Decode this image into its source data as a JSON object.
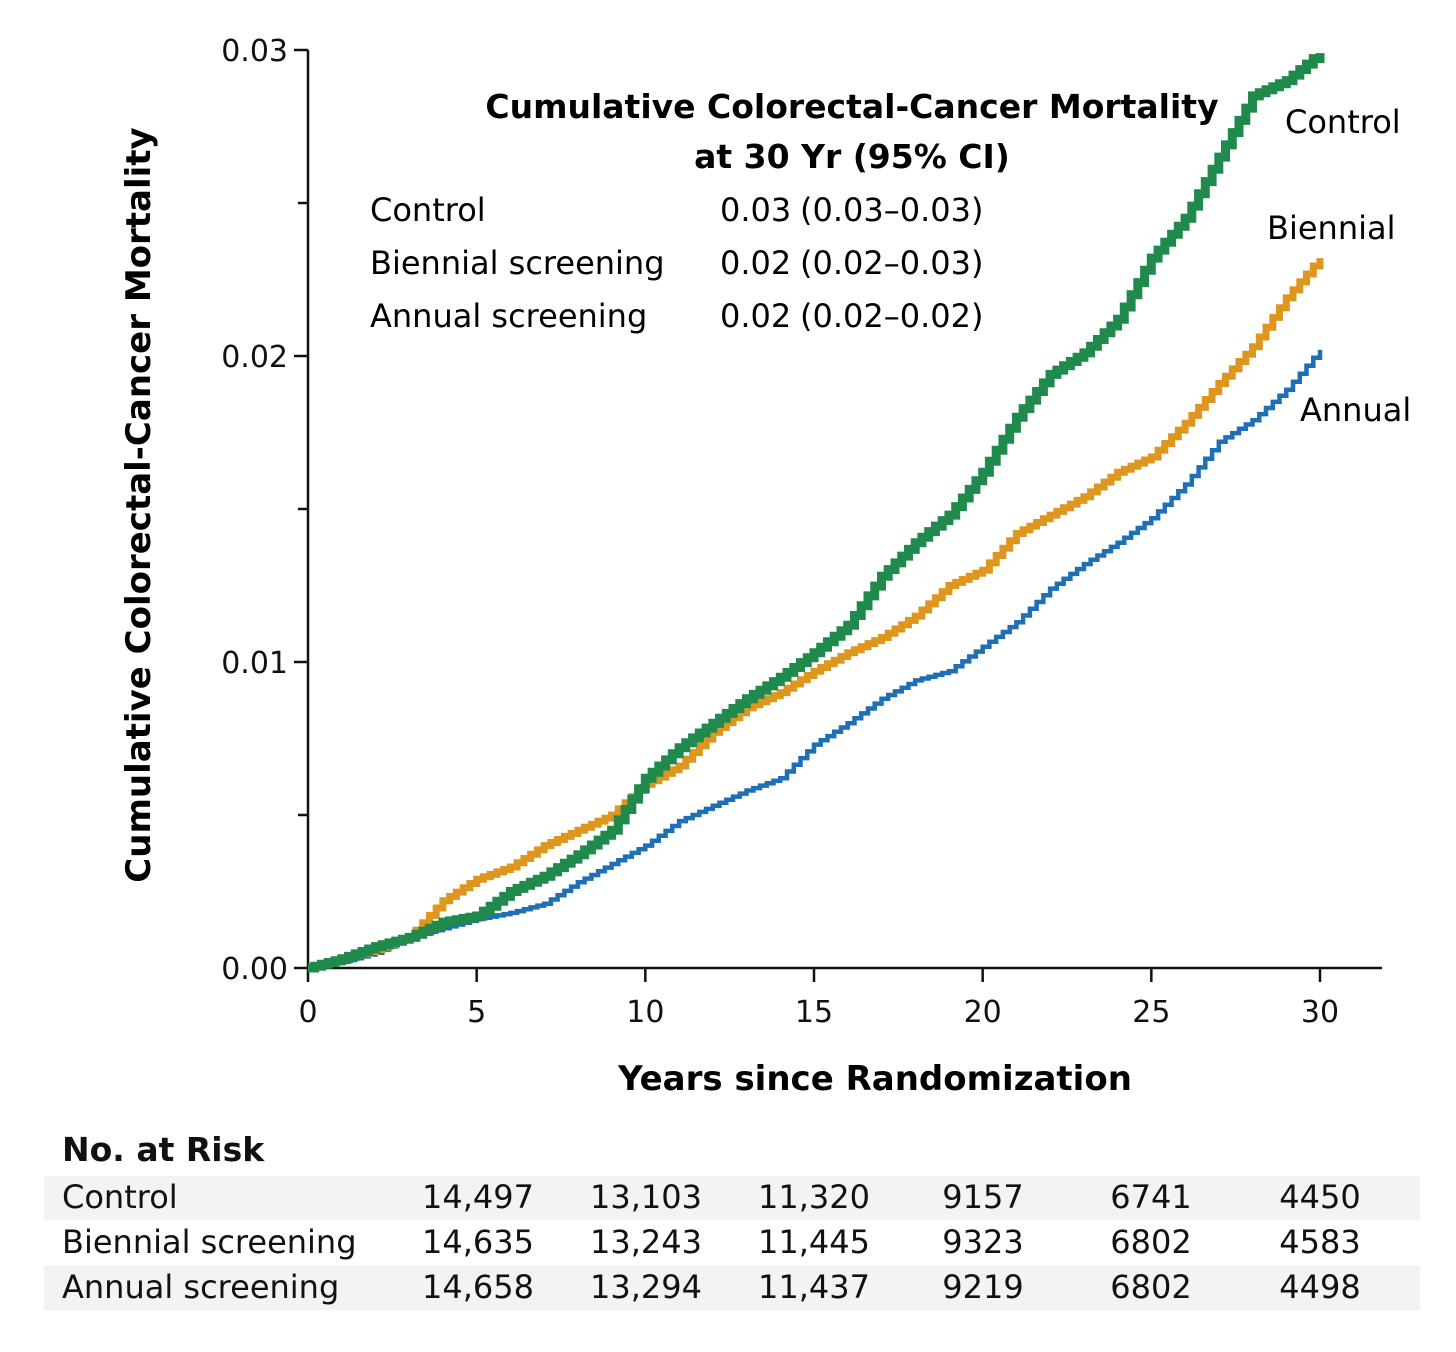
{
  "chart_data": {
    "type": "line",
    "step": true,
    "ylabel": "Cumulative Colorectal-Cancer Mortality",
    "xlabel": "Years since Randomization",
    "xlim": [
      0,
      30
    ],
    "ylim": [
      0,
      0.03
    ],
    "x_ticks": [
      "0",
      "5",
      "10",
      "15",
      "20",
      "25",
      "30"
    ],
    "y_ticks": [
      "0.00",
      "0.01",
      "0.02",
      "0.03"
    ],
    "y_minor_ticks": [
      0.005,
      0.015,
      0.025
    ],
    "x": [
      0,
      1,
      2,
      3,
      4,
      5,
      6,
      7,
      8,
      9,
      10,
      11,
      12,
      13,
      14,
      15,
      16,
      17,
      18,
      19,
      20,
      21,
      22,
      23,
      24,
      25,
      26,
      27,
      28,
      29,
      30
    ],
    "series": [
      {
        "name": "Control",
        "label": "Control",
        "color": "#1f8a4c",
        "values": [
          0,
          0.0003,
          0.0007,
          0.001,
          0.0015,
          0.0017,
          0.0025,
          0.003,
          0.0037,
          0.0045,
          0.0062,
          0.0072,
          0.008,
          0.0088,
          0.0095,
          0.0103,
          0.0112,
          0.0128,
          0.0139,
          0.0148,
          0.0162,
          0.018,
          0.0194,
          0.0201,
          0.0212,
          0.0232,
          0.0245,
          0.0265,
          0.0285,
          0.029,
          0.0299
        ]
      },
      {
        "name": "Biennial screening",
        "label": "Biennial",
        "color": "#de961f",
        "values": [
          0,
          0.0003,
          0.0006,
          0.001,
          0.0022,
          0.0029,
          0.0033,
          0.004,
          0.0045,
          0.005,
          0.006,
          0.0066,
          0.0077,
          0.0085,
          0.009,
          0.0097,
          0.0103,
          0.0108,
          0.0115,
          0.0125,
          0.013,
          0.0142,
          0.0148,
          0.0154,
          0.0162,
          0.0167,
          0.0178,
          0.0191,
          0.0203,
          0.0219,
          0.0232
        ]
      },
      {
        "name": "Annual screening",
        "label": "Annual",
        "color": "#1f6fb5",
        "values": [
          0,
          0.0002,
          0.0005,
          0.001,
          0.0013,
          0.0016,
          0.0018,
          0.0021,
          0.0028,
          0.0034,
          0.004,
          0.0048,
          0.0053,
          0.0058,
          0.0062,
          0.0073,
          0.008,
          0.0088,
          0.0094,
          0.0097,
          0.0105,
          0.0113,
          0.0124,
          0.0132,
          0.0139,
          0.0147,
          0.0158,
          0.0172,
          0.0179,
          0.0189,
          0.0202
        ]
      }
    ],
    "inset": {
      "title_line1": "Cumulative Colorectal-Cancer Mortality",
      "title_line2": "at 30 Yr (95% CI)",
      "rows": [
        {
          "group": "Control",
          "estimate": "0.03",
          "ci": "(0.03–0.03)"
        },
        {
          "group": "Biennial screening",
          "estimate": "0.02",
          "ci": "(0.02–0.03)"
        },
        {
          "group": "Annual screening",
          "estimate": "0.02",
          "ci": "(0.02–0.02)"
        }
      ]
    }
  },
  "risk_table": {
    "title": "No. at Risk",
    "rows": [
      {
        "group": "Control",
        "values": [
          "14,497",
          "13,103",
          "11,320",
          "9157",
          "6741",
          "4450"
        ]
      },
      {
        "group": "Biennial screening",
        "values": [
          "14,635",
          "13,243",
          "11,445",
          "9323",
          "6802",
          "4583"
        ]
      },
      {
        "group": "Annual screening",
        "values": [
          "14,658",
          "13,294",
          "11,437",
          "9219",
          "6802",
          "4498"
        ]
      }
    ]
  }
}
